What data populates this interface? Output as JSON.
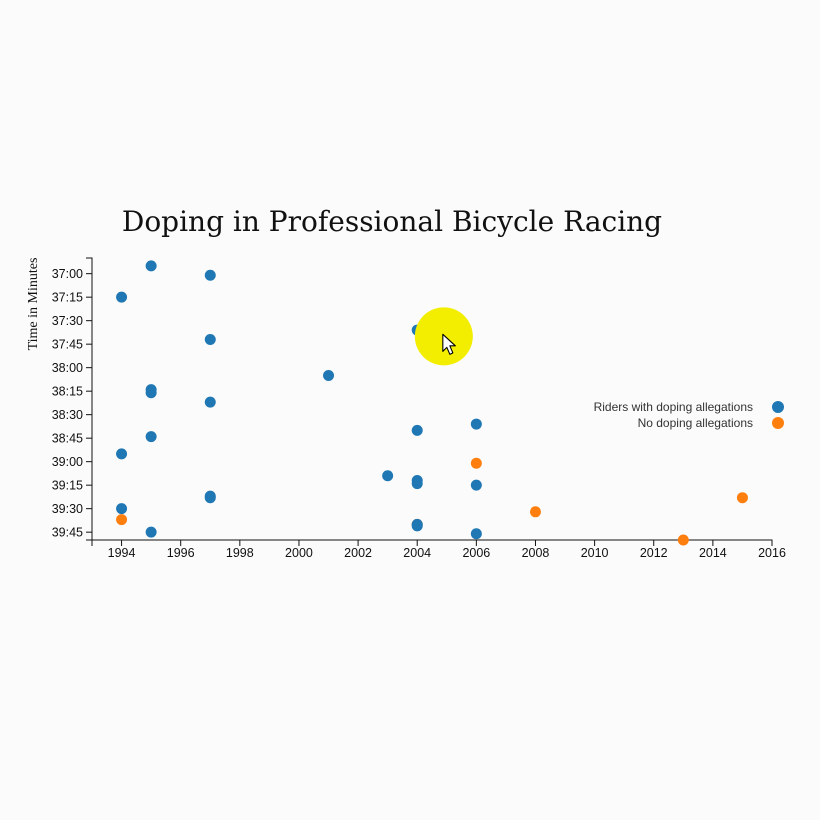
{
  "colors": {
    "doping": "#1f77b4",
    "no_doping": "#ff7f0e",
    "cursor_highlight": "#f3ee00"
  },
  "cursor": {
    "icon": "arrow-cursor-icon",
    "year": 2004.9,
    "time": "37:40"
  },
  "chart_data": {
    "type": "scatter",
    "title": "Doping in Professional Bicycle Racing",
    "xlabel": "",
    "ylabel": "Time in Minutes",
    "xlim": [
      1993,
      2016
    ],
    "ylim": [
      "36:50",
      "39:50"
    ],
    "x_ticks": [
      "1994",
      "1996",
      "1998",
      "2000",
      "2002",
      "2004",
      "2006",
      "2008",
      "2010",
      "2012",
      "2014",
      "2016"
    ],
    "y_ticks": [
      "37:00",
      "37:15",
      "37:30",
      "37:45",
      "38:00",
      "38:15",
      "38:30",
      "38:45",
      "39:00",
      "39:15",
      "39:30",
      "39:45"
    ],
    "grid": false,
    "legend_position": "right",
    "series": [
      {
        "name": "Riders with doping allegations",
        "color_key": "doping",
        "points": [
          {
            "x": 1995,
            "y": "36:55"
          },
          {
            "x": 1997,
            "y": "37:01"
          },
          {
            "x": 1994,
            "y": "37:15"
          },
          {
            "x": 2004,
            "y": "37:36"
          },
          {
            "x": 1997,
            "y": "37:42"
          },
          {
            "x": 2001,
            "y": "38:05"
          },
          {
            "x": 1995,
            "y": "38:14"
          },
          {
            "x": 1995,
            "y": "38:16"
          },
          {
            "x": 1997,
            "y": "38:22"
          },
          {
            "x": 2006,
            "y": "38:36"
          },
          {
            "x": 2004,
            "y": "38:40"
          },
          {
            "x": 1995,
            "y": "38:44"
          },
          {
            "x": 1994,
            "y": "38:55"
          },
          {
            "x": 2003,
            "y": "39:09"
          },
          {
            "x": 2004,
            "y": "39:12"
          },
          {
            "x": 2004,
            "y": "39:14"
          },
          {
            "x": 2006,
            "y": "39:15"
          },
          {
            "x": 1997,
            "y": "39:22"
          },
          {
            "x": 1997,
            "y": "39:23"
          },
          {
            "x": 1994,
            "y": "39:30"
          },
          {
            "x": 2004,
            "y": "39:40"
          },
          {
            "x": 2004,
            "y": "39:41"
          },
          {
            "x": 1995,
            "y": "39:45"
          },
          {
            "x": 2006,
            "y": "39:46"
          }
        ]
      },
      {
        "name": "No doping allegations",
        "color_key": "no_doping",
        "points": [
          {
            "x": 2006,
            "y": "39:01"
          },
          {
            "x": 2015,
            "y": "39:23"
          },
          {
            "x": 2008,
            "y": "39:32"
          },
          {
            "x": 1994,
            "y": "39:37"
          },
          {
            "x": 2004,
            "y": "39:40"
          },
          {
            "x": 2013,
            "y": "39:50"
          }
        ]
      }
    ]
  }
}
